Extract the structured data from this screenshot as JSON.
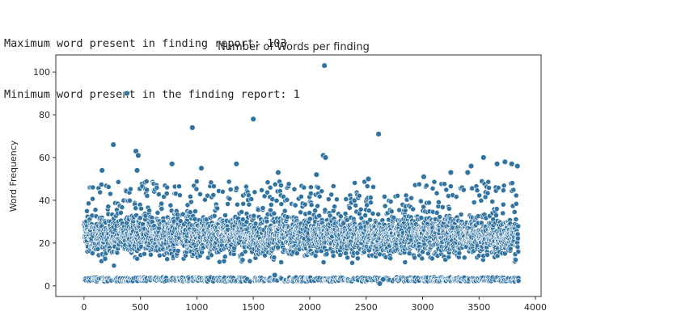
{
  "output": {
    "line1": "Maximum word present in finding report: 103",
    "line2": "Minimum word present in the finding report: 1"
  },
  "chart_data": {
    "type": "scatter",
    "title": "Number of Words per finding",
    "xlabel": "",
    "ylabel": "Word Frequency",
    "xlim": [
      -250,
      4050
    ],
    "ylim": [
      -5,
      108
    ],
    "xticks": [
      0,
      500,
      1000,
      1500,
      2000,
      2500,
      3000,
      3500,
      4000
    ],
    "yticks": [
      0,
      20,
      40,
      60,
      80,
      100
    ],
    "grid": false,
    "legend": "none",
    "n_points": 3850,
    "x_range": [
      0,
      3850
    ],
    "series": [
      {
        "color": "#3274a1",
        "points": [
          [
            2130,
            103
          ],
          [
            380,
            90
          ],
          [
            960,
            74
          ],
          [
            1500,
            78
          ],
          [
            2610,
            71
          ],
          [
            260,
            66
          ],
          [
            460,
            63
          ],
          [
            480,
            61
          ],
          [
            2120,
            61
          ],
          [
            2140,
            60
          ],
          [
            3540,
            60
          ],
          [
            3730,
            58
          ],
          [
            3790,
            57
          ],
          [
            3840,
            56
          ],
          [
            3430,
            56
          ],
          [
            3660,
            57
          ],
          [
            780,
            57
          ],
          [
            1040,
            55
          ],
          [
            470,
            54
          ],
          [
            160,
            54
          ],
          [
            1720,
            53
          ],
          [
            1350,
            57
          ],
          [
            2060,
            52
          ],
          [
            3400,
            53
          ],
          [
            3010,
            51
          ],
          [
            2520,
            50
          ],
          [
            3250,
            53
          ],
          [
            2620,
            1
          ],
          [
            2650,
            3
          ],
          [
            1690,
            5
          ]
        ]
      }
    ],
    "point_distribution": {
      "dense_band_y": [
        8,
        40
      ],
      "floor_band_y": [
        2,
        4
      ]
    },
    "colors": {
      "marker_fill": "#3274a1",
      "marker_edge": "#ffffff",
      "axes_edge": "#333333",
      "text": "#262626"
    }
  }
}
